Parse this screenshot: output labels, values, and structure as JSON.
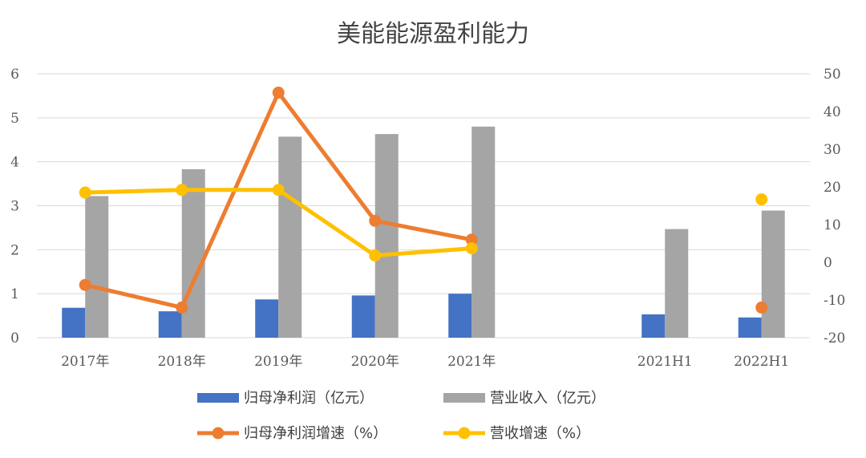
{
  "chart_data": {
    "type": "bar",
    "title": "美能能源盈利能力",
    "categories": [
      "2017年",
      "2018年",
      "2019年",
      "2020年",
      "2021年",
      "",
      "2021H1",
      "2022H1"
    ],
    "y_left": {
      "min": 0,
      "max": 6,
      "ticks": [
        "0",
        "1",
        "2",
        "3",
        "4",
        "5",
        "6"
      ]
    },
    "y_right": {
      "min": -20,
      "max": 50,
      "ticks": [
        "-20",
        "-10",
        "0",
        "10",
        "20",
        "30",
        "40",
        "50"
      ]
    },
    "grid": true,
    "legend_position": "bottom",
    "series": [
      {
        "name": "归母净利润（亿元）",
        "type": "bar",
        "axis": "left",
        "color": "#4472C4",
        "values": [
          0.68,
          0.6,
          0.87,
          0.96,
          1.0,
          null,
          0.53,
          0.46
        ]
      },
      {
        "name": "营业收入（亿元）",
        "type": "bar",
        "axis": "left",
        "color": "#A5A5A5",
        "values": [
          3.22,
          3.83,
          4.57,
          4.63,
          4.8,
          null,
          2.47,
          2.89
        ]
      },
      {
        "name": "归母净利润增速（%）",
        "type": "line",
        "axis": "right",
        "color": "#ED7D31",
        "values": [
          -6,
          -12,
          45,
          11,
          6,
          null,
          null,
          -12
        ]
      },
      {
        "name": "营收增速（%）",
        "type": "line",
        "axis": "right",
        "color": "#FFC000",
        "values": [
          18.5,
          19.2,
          19.2,
          1.8,
          3.7,
          null,
          null,
          16.7
        ]
      }
    ]
  }
}
